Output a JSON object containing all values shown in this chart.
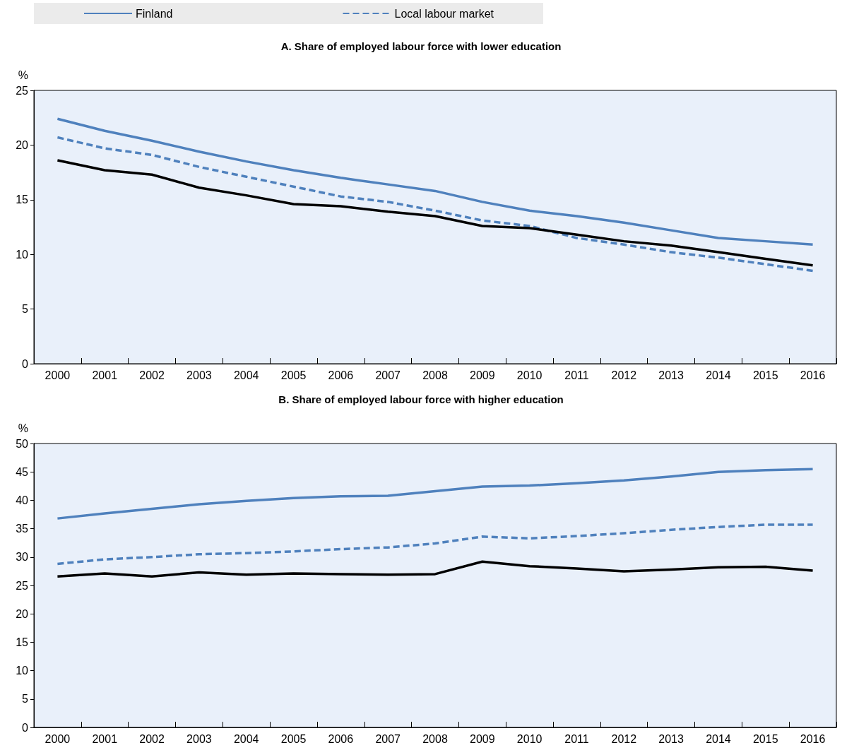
{
  "chart_data": [
    {
      "type": "line",
      "title": "A. Share of employed labour force with lower education",
      "ylabel": "%",
      "categories": [
        "2000",
        "2001",
        "2002",
        "2003",
        "2004",
        "2005",
        "2006",
        "2007",
        "2008",
        "2009",
        "2010",
        "2011",
        "2012",
        "2013",
        "2014",
        "2015",
        "2016"
      ],
      "ylim": [
        0,
        25
      ],
      "yticks": [
        0,
        5,
        10,
        15,
        20,
        25
      ],
      "grid": false,
      "legend": "top",
      "marker": "none",
      "series": [
        {
          "name": "Finland",
          "color": "#4f81bd",
          "line_style": "solid",
          "values": [
            22.4,
            21.3,
            20.4,
            19.4,
            18.5,
            17.7,
            17.0,
            16.4,
            15.8,
            14.8,
            14.0,
            13.5,
            12.9,
            12.2,
            11.5,
            11.2,
            10.9
          ]
        },
        {
          "name": "Local labour market",
          "color": "#4f81bd",
          "line_style": "dashed",
          "values": [
            20.7,
            19.7,
            19.1,
            18.0,
            17.1,
            16.2,
            15.3,
            14.8,
            14.0,
            13.1,
            12.6,
            11.5,
            10.9,
            10.2,
            9.7,
            9.1,
            8.5
          ]
        },
        {
          "color": "#000000",
          "line_style": "solid",
          "values": [
            18.6,
            17.7,
            17.3,
            16.1,
            15.4,
            14.6,
            14.4,
            13.9,
            13.5,
            12.6,
            12.4,
            11.8,
            11.2,
            10.8,
            10.2,
            9.6,
            9.0
          ]
        }
      ]
    },
    {
      "type": "line",
      "title": "B. Share of employed labour force with higher education",
      "ylabel": "%",
      "categories": [
        "2000",
        "2001",
        "2002",
        "2003",
        "2004",
        "2005",
        "2006",
        "2007",
        "2008",
        "2009",
        "2010",
        "2011",
        "2012",
        "2013",
        "2014",
        "2015",
        "2016"
      ],
      "ylim": [
        0,
        50
      ],
      "yticks": [
        0,
        5,
        10,
        15,
        20,
        25,
        30,
        35,
        40,
        45,
        50
      ],
      "grid": false,
      "legend": false,
      "marker": "none",
      "series": [
        {
          "color": "#4f81bd",
          "line_style": "solid",
          "values": [
            36.8,
            37.7,
            38.5,
            39.3,
            39.9,
            40.4,
            40.7,
            40.8,
            41.6,
            42.4,
            42.6,
            43.0,
            43.5,
            44.2,
            45.0,
            45.3,
            45.5
          ]
        },
        {
          "color": "#4f81bd",
          "line_style": "dashed",
          "values": [
            28.8,
            29.6,
            30.0,
            30.5,
            30.7,
            31.0,
            31.4,
            31.7,
            32.4,
            33.6,
            33.3,
            33.7,
            34.2,
            34.8,
            35.3,
            35.7,
            35.7
          ]
        },
        {
          "color": "#000000",
          "line_style": "solid",
          "values": [
            26.6,
            27.1,
            26.6,
            27.3,
            26.9,
            27.1,
            27.0,
            26.9,
            27.0,
            29.2,
            28.4,
            28.0,
            27.5,
            27.8,
            28.2,
            28.3,
            27.6
          ]
        }
      ]
    }
  ]
}
